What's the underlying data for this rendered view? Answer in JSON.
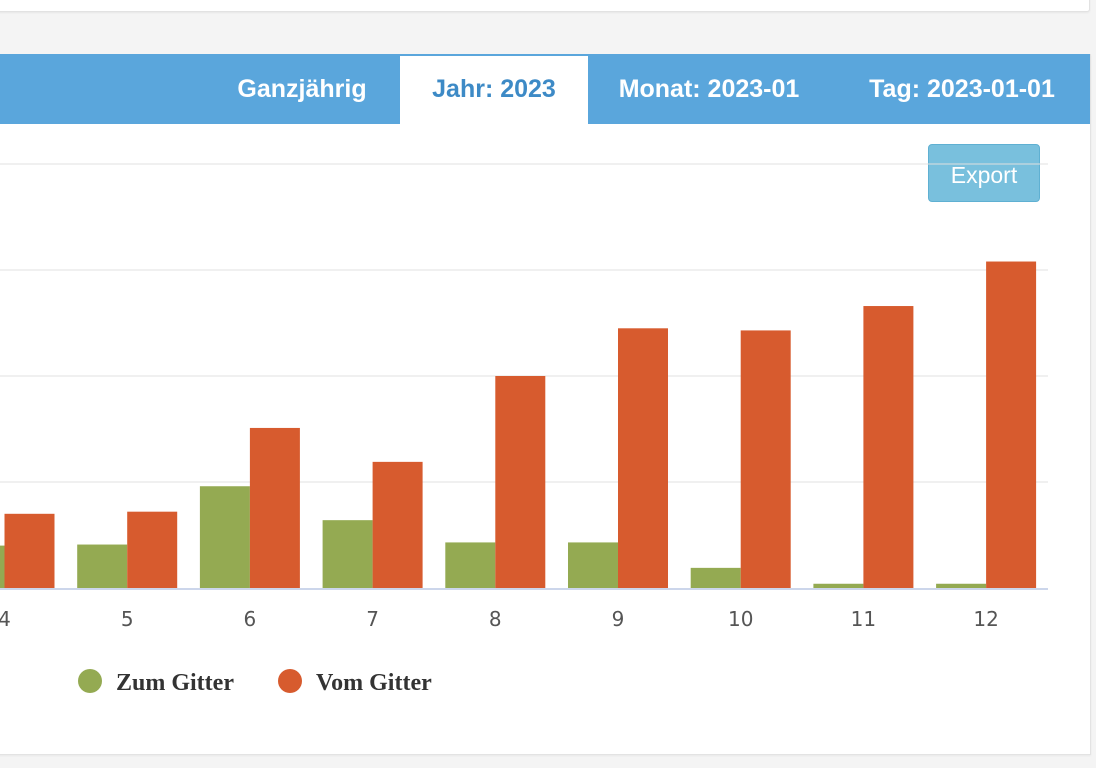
{
  "tabs": [
    {
      "label": "Ganzjährig",
      "active": false
    },
    {
      "label": "Jahr: 2023",
      "active": true
    },
    {
      "label": "Monat: 2023-01",
      "active": false
    },
    {
      "label": "Tag: 2023-01-01",
      "active": false
    }
  ],
  "export_label": "Export",
  "colors": {
    "tab_bar": "#5aa6dc",
    "active_tab_text": "#3d8ac6",
    "export_button": "#79c0dd",
    "series_to_grid": "#94aa52",
    "series_from_grid": "#d75b2e"
  },
  "chart_data": {
    "type": "bar",
    "categories": [
      "4",
      "5",
      "6",
      "7",
      "8",
      "9",
      "10",
      "11",
      "12"
    ],
    "ylim": [
      0,
      4
    ],
    "grid": true,
    "legend": "bottom-left",
    "series": [
      {
        "name": "Zum Gitter",
        "color": "#94aa52",
        "values": [
          0.4,
          0.41,
          0.96,
          0.64,
          0.43,
          0.43,
          0.19,
          0.04,
          0.04
        ]
      },
      {
        "name": "Vom Gitter",
        "color": "#d75b2e",
        "values": [
          0.7,
          0.72,
          1.51,
          1.19,
          2.0,
          2.45,
          2.43,
          2.66,
          3.08
        ]
      }
    ]
  }
}
